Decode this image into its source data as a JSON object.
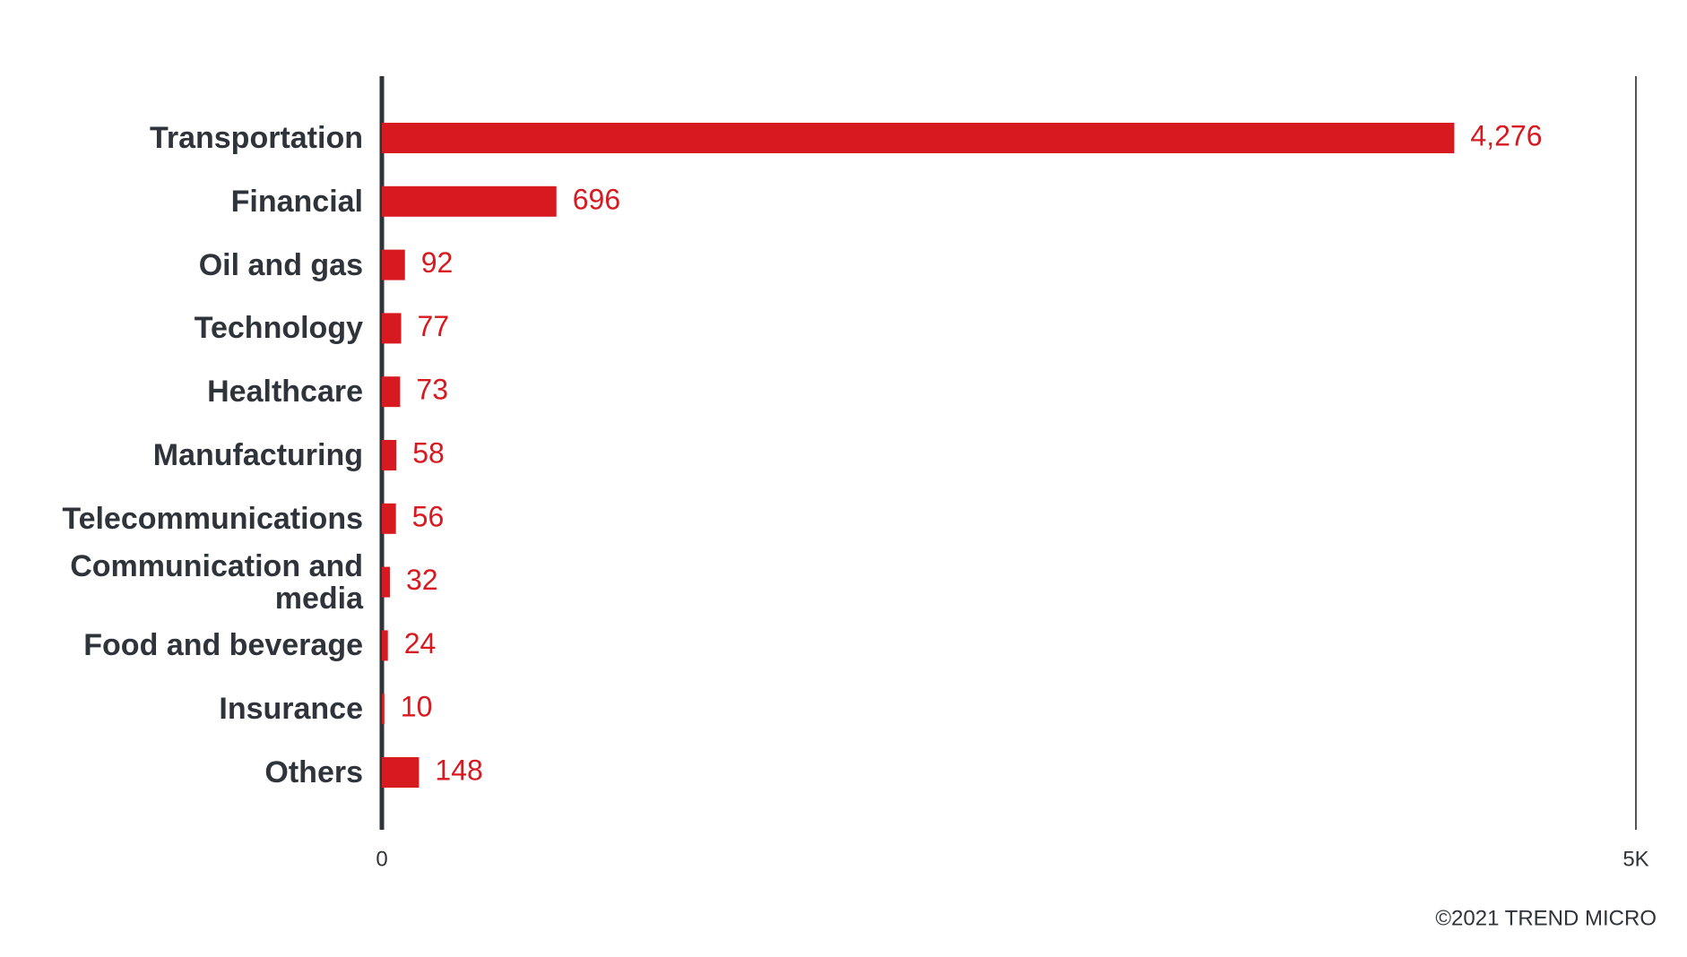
{
  "chart_data": {
    "type": "bar",
    "orientation": "horizontal",
    "categories": [
      "Transportation",
      "Financial",
      "Oil and gas",
      "Technology",
      "Healthcare",
      "Manufacturing",
      "Telecommunications",
      "Communication and media",
      "Food and beverage",
      "Insurance",
      "Others"
    ],
    "values": [
      4276,
      696,
      92,
      77,
      73,
      58,
      56,
      32,
      24,
      10,
      148
    ],
    "value_labels": [
      "4,276",
      "696",
      "92",
      "77",
      "73",
      "58",
      "56",
      "32",
      "24",
      "10",
      "148"
    ],
    "color": "#d71920",
    "xlim": [
      0,
      5000
    ],
    "xticks": [
      0,
      {
        "value": 5000,
        "label": "5K"
      }
    ]
  },
  "footer": "©2021 TREND MICRO"
}
